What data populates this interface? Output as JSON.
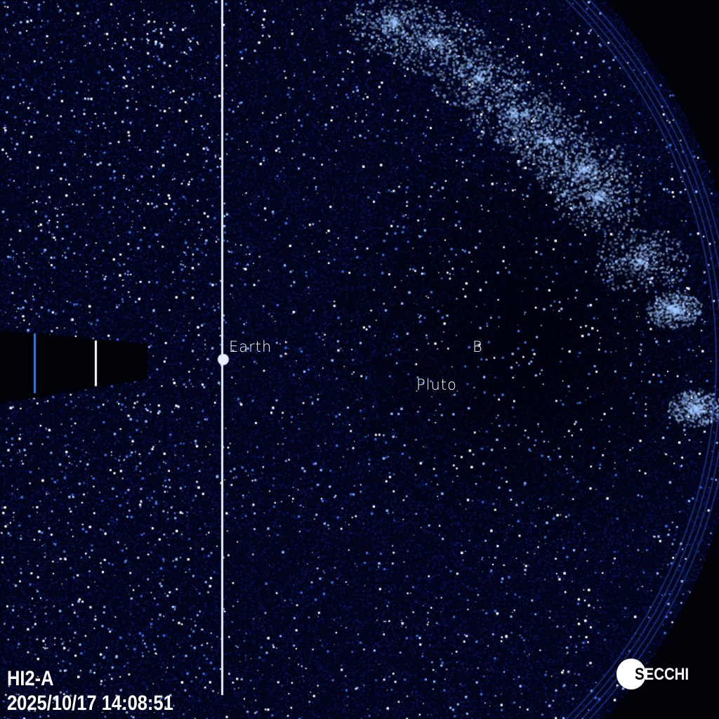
{
  "instrument": "HI2-A",
  "timestamp": "2025/10/17 14:08:51",
  "logo": {
    "first_letter": "S",
    "rest": "ECCHI"
  },
  "labels": {
    "earth": "Earth",
    "pluto": "Pluto",
    "b": "B"
  },
  "colors": {
    "background": "#01041a",
    "star": "#ffffff",
    "star_tint": "#4a8cff",
    "cloud": "#9cc4ff"
  }
}
